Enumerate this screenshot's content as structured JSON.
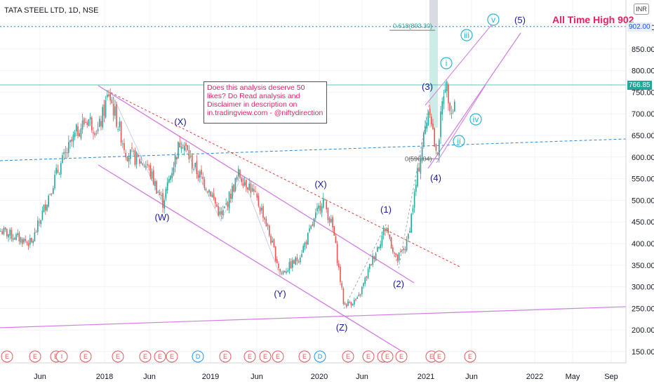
{
  "title": "TATA STEEL LTD, 1D, NSE",
  "currency": "INR",
  "all_time_high_label": "All Time High 902",
  "annotation_note": "Does this analysis deserve 50 likes? Do Read analysis and Disclaimer in description on in.tradingview.com - @niftydirection",
  "fib_label_top": "0.618(893.30)",
  "fib_label_low": "0(596.04)",
  "price_tag_current": "766.85",
  "price_tag_level": "902.00",
  "colors": {
    "candle_up": "#26a69a",
    "candle_down": "#ef5350",
    "channel": "#d07ee0",
    "red_trend": "#e53935",
    "blue_dashed": "#2a87d6",
    "wave_label": "#1a1a9c",
    "cyan_wave": "#26b5d6",
    "highlight": "#e91e63"
  },
  "chart_data": {
    "type": "candlestick",
    "title": "TATA STEEL LTD, 1D, NSE",
    "y_axis_ticks": [
      "900.00",
      "850.00",
      "800.00",
      "750.00",
      "700.00",
      "650.00",
      "600.00",
      "550.00",
      "500.00",
      "450.00",
      "400.00",
      "350.00",
      "300.00",
      "250.00",
      "200.00",
      "150.00"
    ],
    "ylim": [
      125,
      950
    ],
    "x_axis_ticks": [
      "Jun",
      "2018",
      "Jun",
      "2019",
      "Jun",
      "2020",
      "Jun",
      "2021",
      "Jun",
      "2022",
      "May",
      "Sep"
    ],
    "price_path": [
      {
        "x": 0,
        "y": 430
      },
      {
        "x": 45,
        "y": 400
      },
      {
        "x": 80,
        "y": 560
      },
      {
        "x": 110,
        "y": 660
      },
      {
        "x": 125,
        "y": 690
      },
      {
        "x": 140,
        "y": 660
      },
      {
        "x": 155,
        "y": 748
      },
      {
        "x": 180,
        "y": 610
      },
      {
        "x": 210,
        "y": 580
      },
      {
        "x": 232,
        "y": 495
      },
      {
        "x": 258,
        "y": 645
      },
      {
        "x": 275,
        "y": 580
      },
      {
        "x": 300,
        "y": 520
      },
      {
        "x": 315,
        "y": 460
      },
      {
        "x": 340,
        "y": 560
      },
      {
        "x": 355,
        "y": 535
      },
      {
        "x": 375,
        "y": 470
      },
      {
        "x": 400,
        "y": 330
      },
      {
        "x": 425,
        "y": 365
      },
      {
        "x": 440,
        "y": 420
      },
      {
        "x": 460,
        "y": 505
      },
      {
        "x": 475,
        "y": 430
      },
      {
        "x": 490,
        "y": 258
      },
      {
        "x": 510,
        "y": 270
      },
      {
        "x": 530,
        "y": 360
      },
      {
        "x": 550,
        "y": 440
      },
      {
        "x": 565,
        "y": 360
      },
      {
        "x": 580,
        "y": 400
      },
      {
        "x": 600,
        "y": 610
      },
      {
        "x": 612,
        "y": 725
      },
      {
        "x": 622,
        "y": 593
      },
      {
        "x": 634,
        "y": 780
      },
      {
        "x": 645,
        "y": 700
      },
      {
        "x": 650,
        "y": 766
      }
    ],
    "current_price": 766.85,
    "resistance_level": 902.0,
    "wave_labels": [
      "(X)",
      "(W)",
      "(X)",
      "(Y)",
      "(Z)",
      "(1)",
      "(2)",
      "(3)",
      "(4)",
      "(5)"
    ],
    "subwave_labels": [
      "i",
      "ii",
      "iii",
      "iv",
      "v"
    ],
    "event_badges": [
      "E",
      "E",
      "E",
      "I",
      "E",
      "E",
      "E",
      "E",
      "E",
      "D",
      "E",
      "E",
      "E",
      "E",
      "E",
      "D",
      "E",
      "E",
      "E",
      "E",
      "E",
      "E",
      "E",
      "E",
      "E",
      "E"
    ]
  }
}
